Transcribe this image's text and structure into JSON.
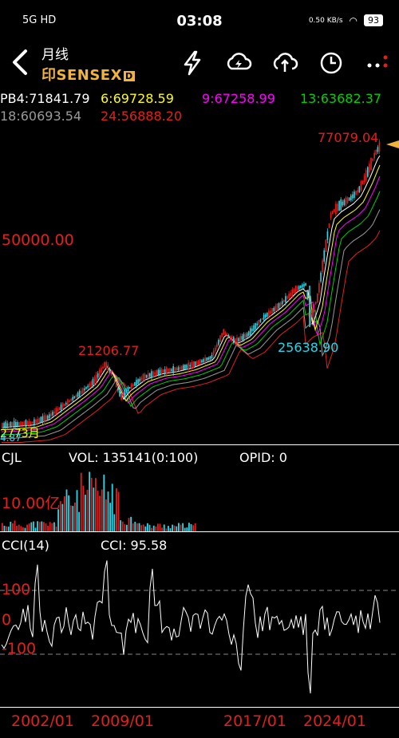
{
  "status": {
    "left_icons": "5G  HD",
    "time": "03:08",
    "net_speed": "0.50 KB/s",
    "battery": "93"
  },
  "header": {
    "period": "月线",
    "symbol": "印SENSEX",
    "badge": "D",
    "icons": [
      "lightning-icon",
      "cloud-sync-icon",
      "cloud-upload-icon",
      "clock-icon",
      "more-icon"
    ]
  },
  "ma": {
    "pb4": "PB4:71841.79",
    "m6": "6:69728.59",
    "m9": "9:67258.99",
    "m13": "13:63682.37",
    "m18": "18:60693.54",
    "m24": "24:56888.20"
  },
  "colors": {
    "up": "#e02020",
    "down": "#27d7e8",
    "pb4": "#ffffff",
    "m6": "#ffff00",
    "m9": "#ff00ff",
    "m13": "#00d000",
    "m18": "#9a9a9a",
    "m24": "#e02020"
  },
  "price_chart": {
    "high_label": "77079.04",
    "mid_label": "50000.00",
    "peak_2008": "21206.77",
    "low_2020": "25638.90",
    "bottom_label": "2773月",
    "bottom_label2": "4.87"
  },
  "volume": {
    "indicator": "CJL",
    "vol": "VOL: 135141(0:100)",
    "opid": "OPID: 0",
    "scale": "10.00亿"
  },
  "cci": {
    "indicator": "CCI(14)",
    "value": "CCI: 95.58",
    "level_pos": "100",
    "level_zero": "0",
    "level_neg": "-100"
  },
  "x_axis": [
    "2002/01",
    "2009/01",
    "2017/01",
    "2024/01"
  ],
  "chart_data": {
    "type": "candlestick",
    "title": "印SENSEX 月线",
    "x": [
      "2002/01",
      "2009/01",
      "2017/01",
      "2024/01"
    ],
    "y_labels": [
      "50000.00"
    ],
    "annotations": [
      {
        "label": "77079.04",
        "kind": "high"
      },
      {
        "label": "21206.77",
        "kind": "local high 2008"
      },
      {
        "label": "25638.90",
        "kind": "local low 2020"
      }
    ],
    "series": [
      {
        "name": "PB4",
        "value": 71841.79
      },
      {
        "name": "6",
        "value": 69728.59
      },
      {
        "name": "9",
        "value": 67258.99
      },
      {
        "name": "13",
        "value": 63682.37
      },
      {
        "name": "18",
        "value": 60693.54
      },
      {
        "name": "24",
        "value": 56888.2
      }
    ]
  }
}
